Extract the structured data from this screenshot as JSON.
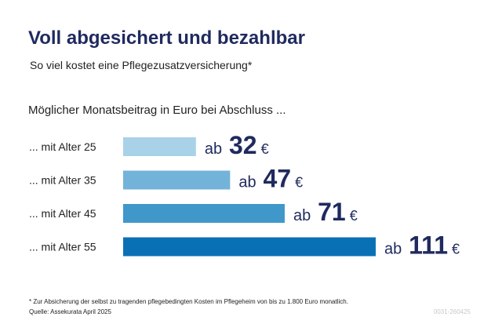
{
  "chart_data": {
    "type": "bar",
    "orientation": "horizontal",
    "title": "Voll abgesichert und bezahlbar",
    "subtitle": "So viel kostet eine Pflegezusatzversicherung*",
    "axis_label": "Möglicher Monatsbeitrag in Euro bei Abschluss ...",
    "categories": [
      "... mit Alter 25",
      "... mit Alter 35",
      "... mit Alter 45",
      "... mit Alter 55"
    ],
    "values": [
      32,
      47,
      71,
      111
    ],
    "value_labels": [
      "ab 32 €",
      "ab 47 €",
      "ab 71 €",
      "ab 111 €"
    ],
    "colors": [
      "#a9d2e8",
      "#73b3d9",
      "#3f98c9",
      "#0a70b6"
    ],
    "footnote": "* Zur Absicherung der selbst zu tragenden pflegebedingten Kosten im Pflegeheim von bis zu 1.800 Euro monatlich.",
    "source": "Quelle: Assekurata April 2025",
    "code": "0031-260425"
  }
}
